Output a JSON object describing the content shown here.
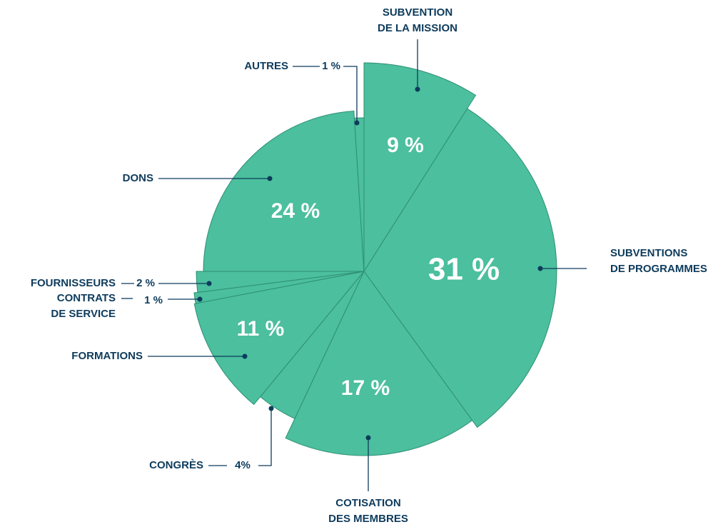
{
  "chart_data": {
    "type": "pie",
    "categories": [
      [
        "SUBVENTION",
        "DE LA MISSION"
      ],
      [
        "SUBVENTIONS",
        "DE PROGRAMMES"
      ],
      [
        "COTISATION",
        "DES MEMBRES"
      ],
      [
        "CONGRÈS"
      ],
      [
        "FORMATIONS"
      ],
      [
        "CONTRATS",
        "DE SERVICE"
      ],
      [
        "FOURNISSEURS"
      ],
      [
        "DONS"
      ],
      [
        "AUTRES"
      ]
    ],
    "values": [
      9,
      31,
      17,
      4,
      11,
      1,
      2,
      24,
      1
    ],
    "value_labels": [
      "9 %",
      "31 %",
      "17 %",
      "4%",
      "11 %",
      "1 %",
      "2 %",
      "24 %",
      "1 %"
    ],
    "color": "#4bbf9e"
  }
}
